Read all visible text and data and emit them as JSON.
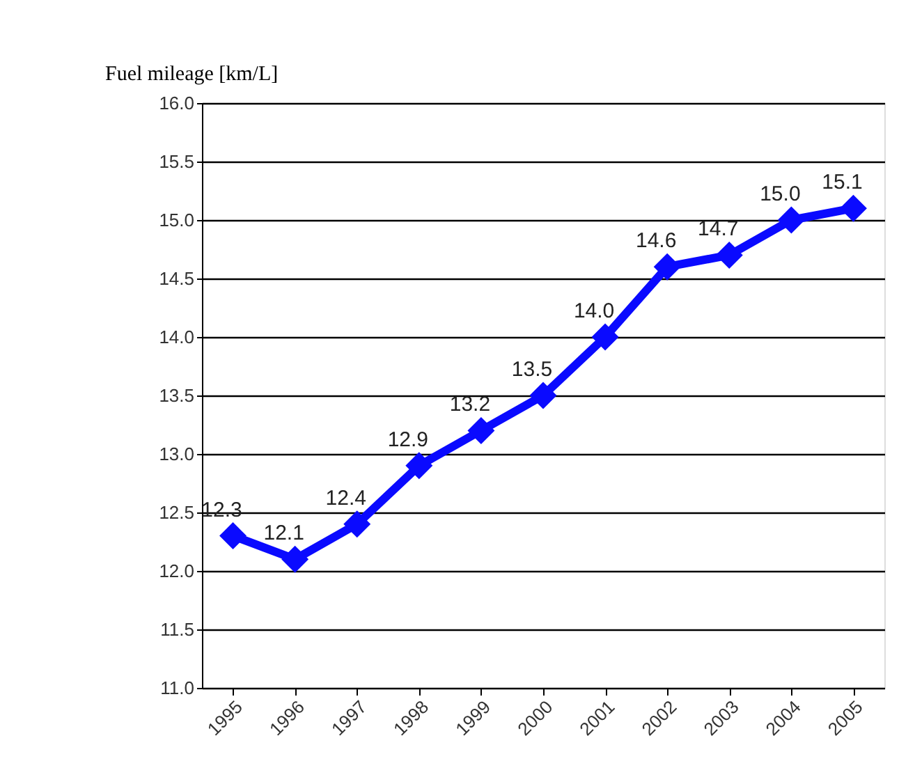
{
  "chart_data": {
    "type": "line",
    "ylabel": "Fuel mileage [km/L]",
    "categories": [
      "1995",
      "1996",
      "1997",
      "1998",
      "1999",
      "2000",
      "2001",
      "2002",
      "2003",
      "2004",
      "2005"
    ],
    "series": [
      {
        "color": "#0a0aff",
        "values": [
          12.3,
          12.1,
          12.4,
          12.9,
          13.2,
          13.5,
          14.0,
          14.6,
          14.7,
          15.0,
          15.1
        ],
        "value_labels": [
          "12.3",
          "12.1",
          "12.4",
          "12.9",
          "13.2",
          "13.5",
          "14.0",
          "14.6",
          "14.7",
          "15.0",
          "15.1"
        ]
      }
    ],
    "ylim": [
      11,
      16
    ],
    "yticks": [
      {
        "value": 11,
        "label": "11.0"
      },
      {
        "value": 11.5,
        "label": "11.5"
      },
      {
        "value": 12,
        "label": "12.0"
      },
      {
        "value": 12.5,
        "label": "12.5"
      },
      {
        "value": 13,
        "label": "13.0"
      },
      {
        "value": 13.5,
        "label": "13.5"
      },
      {
        "value": 14,
        "label": "14.0"
      },
      {
        "value": 14.5,
        "label": "14.5"
      },
      {
        "value": 15,
        "label": "15.0"
      },
      {
        "value": 15.5,
        "label": "15.5"
      },
      {
        "value": 16,
        "label": "16.0"
      }
    ],
    "grid": "y",
    "marker": "diamond",
    "line_style": "solid"
  }
}
